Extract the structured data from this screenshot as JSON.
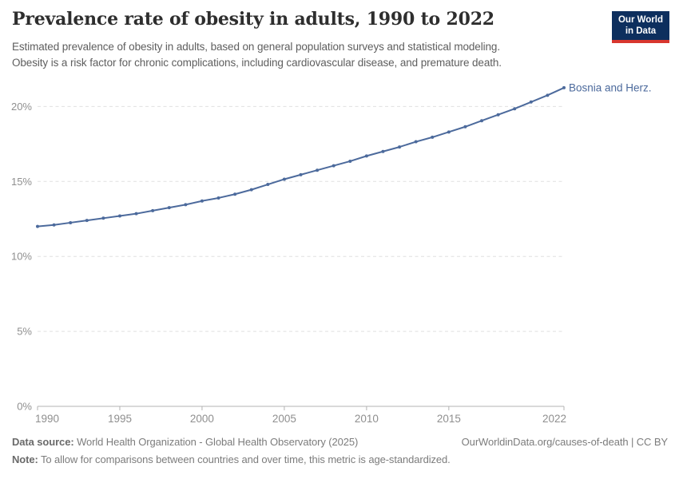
{
  "header": {
    "title": "Prevalence rate of obesity in adults, 1990 to 2022",
    "subtitle_line1": "Estimated prevalence of obesity in adults, based on general population surveys and statistical modeling.",
    "subtitle_line2": "Obesity is a risk factor for chronic complications, including cardiovascular disease, and premature death.",
    "logo": {
      "line1": "Our World",
      "line2": "in Data"
    }
  },
  "chart_data": {
    "type": "line",
    "title": "Prevalence rate of obesity in adults, 1990 to 2022",
    "entity_label": "Bosnia and Herz.",
    "x": [
      1990,
      1991,
      1992,
      1993,
      1994,
      1995,
      1996,
      1997,
      1998,
      1999,
      2000,
      2001,
      2002,
      2003,
      2004,
      2005,
      2006,
      2007,
      2008,
      2009,
      2010,
      2011,
      2012,
      2013,
      2014,
      2015,
      2016,
      2017,
      2018,
      2019,
      2020,
      2021,
      2022
    ],
    "series": [
      {
        "name": "Bosnia and Herz.",
        "values": [
          12.0,
          12.1,
          12.25,
          12.4,
          12.55,
          12.7,
          12.85,
          13.05,
          13.25,
          13.45,
          13.7,
          13.9,
          14.15,
          14.45,
          14.8,
          15.15,
          15.45,
          15.75,
          16.05,
          16.35,
          16.7,
          17.0,
          17.3,
          17.65,
          17.95,
          18.3,
          18.65,
          19.05,
          19.45,
          19.85,
          20.3,
          20.75,
          21.25
        ]
      }
    ],
    "xlim": [
      1990,
      2022
    ],
    "ylim": [
      0,
      22
    ],
    "x_ticks": [
      1990,
      1995,
      2000,
      2005,
      2010,
      2015,
      2022
    ],
    "y_ticks": [
      0,
      5,
      10,
      15,
      20
    ],
    "y_tick_suffix": "%",
    "grid": "dashed-horizontal",
    "legend_position": "end-of-line-label",
    "line_color": "#4C6A9C"
  },
  "footer": {
    "data_source_label": "Data source:",
    "data_source_text": " World Health Organization - Global Health Observatory (2025)",
    "link": "OurWorldinData.org/causes-of-death | CC BY",
    "note_label": "Note:",
    "note_text": " To allow for comparisons between countries and over time, this metric is age-standardized."
  },
  "colors": {
    "line": "#4C6A9C",
    "logo_bg": "#0d2f5e",
    "logo_stripe": "#d8362e",
    "grid": "#e0e0e0",
    "axis": "#b3b3b3",
    "tick_label": "#8f8f8f"
  }
}
